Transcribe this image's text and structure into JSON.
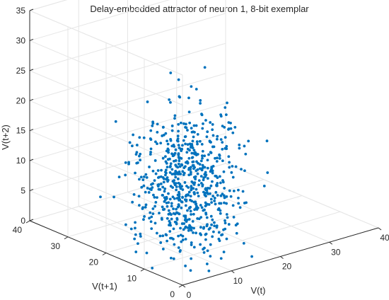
{
  "chart_data": {
    "type": "scatter3d",
    "title": "Delay-embedded attractor of neuron 1, 8-bit exemplar",
    "xlabel": "V(t)",
    "ylabel": "V(t+1)",
    "zlabel": "V(t+2)",
    "xlim": [
      0,
      40
    ],
    "ylim": [
      0,
      40
    ],
    "zlim": [
      0,
      35
    ],
    "xticks": [
      "0",
      "10",
      "20",
      "30",
      "40"
    ],
    "yticks": [
      "0",
      "10",
      "20",
      "30",
      "40"
    ],
    "zticks": [
      "0",
      "5",
      "10",
      "15",
      "20",
      "25",
      "30",
      "35"
    ],
    "grid": true,
    "marker_color": "#0072BD",
    "point_summary": {
      "count": 700,
      "center": [
        10,
        12,
        11
      ],
      "spread": [
        4.5,
        4.5,
        6
      ],
      "range_min": [
        0,
        0,
        0
      ],
      "range_max": [
        25,
        25,
        34
      ]
    }
  }
}
